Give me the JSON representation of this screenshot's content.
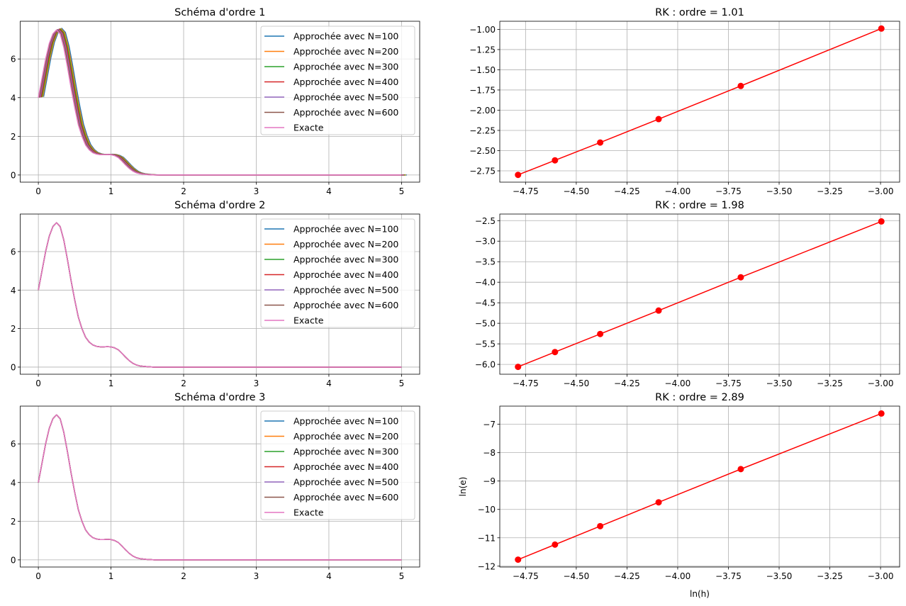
{
  "chart_data": [
    {
      "type": "line",
      "title": "Schéma d'ordre 1",
      "xlim": [
        -0.25,
        5.25
      ],
      "ylim": [
        -0.37,
        7.95
      ],
      "xticks": [
        "0",
        "1",
        "2",
        "3",
        "4",
        "5"
      ],
      "xtick_values": [
        0,
        1,
        2,
        3,
        4,
        5
      ],
      "yticks": [
        "0",
        "2",
        "4",
        "6"
      ],
      "ytick_values": [
        0,
        2,
        4,
        6
      ],
      "grid": true,
      "legend": "top-right",
      "x": [
        0,
        0.05,
        0.1,
        0.15,
        0.2,
        0.25,
        0.3,
        0.35,
        0.4,
        0.45,
        0.5,
        0.55,
        0.6,
        0.65,
        0.7,
        0.75,
        0.8,
        0.85,
        0.9,
        0.95,
        1.0,
        1.05,
        1.1,
        1.15,
        1.2,
        1.25,
        1.3,
        1.35,
        1.4,
        1.5,
        1.6,
        2,
        3,
        4,
        5
      ],
      "y": [
        4,
        5.0,
        6.0,
        6.8,
        7.3,
        7.5,
        7.3,
        6.6,
        5.6,
        4.5,
        3.5,
        2.6,
        2.0,
        1.55,
        1.3,
        1.15,
        1.08,
        1.05,
        1.05,
        1.06,
        1.05,
        1.0,
        0.9,
        0.72,
        0.52,
        0.34,
        0.2,
        0.11,
        0.06,
        0.02,
        0.0,
        0,
        0,
        0,
        0
      ],
      "series": [
        {
          "name": "Approchée avec N=100",
          "color": "#1f77b4"
        },
        {
          "name": "Approchée avec N=200",
          "color": "#ff7f0e"
        },
        {
          "name": "Approchée avec N=300",
          "color": "#2ca02c"
        },
        {
          "name": "Approchée avec N=400",
          "color": "#d62728"
        },
        {
          "name": "Approchée avec N=500",
          "color": "#9467bd"
        },
        {
          "name": "Approchée avec N=600",
          "color": "#8c564b"
        },
        {
          "name": "Exacte",
          "color": "#e377c2"
        }
      ]
    },
    {
      "type": "line",
      "title": "RK : ordre = 1.01",
      "xlim": [
        -4.877,
        -2.906
      ],
      "ylim": [
        -2.89,
        -0.9
      ],
      "xticks": [
        "−4.75",
        "−4.50",
        "−4.25",
        "−4.00",
        "−3.75",
        "−3.50",
        "−3.25",
        "−3.00"
      ],
      "xtick_values": [
        -4.75,
        -4.5,
        -4.25,
        -4,
        -3.75,
        -3.5,
        -3.25,
        -3
      ],
      "yticks": [
        "−1.00",
        "−1.25",
        "−1.50",
        "−1.75",
        "−2.00",
        "−2.25",
        "−2.50",
        "−2.75"
      ],
      "ytick_values": [
        -1,
        -1.25,
        -1.5,
        -1.75,
        -2,
        -2.25,
        -2.5,
        -2.75
      ],
      "grid": true,
      "color": "#ff0000",
      "x": [
        -4.787,
        -4.605,
        -4.382,
        -4.094,
        -3.689,
        -2.996
      ],
      "y": [
        -2.8,
        -2.62,
        -2.4,
        -2.11,
        -1.7,
        -0.99
      ]
    },
    {
      "type": "line",
      "title": "Schéma d'ordre 2",
      "xlim": [
        -0.25,
        5.25
      ],
      "ylim": [
        -0.37,
        7.95
      ],
      "xticks": [
        "0",
        "1",
        "2",
        "3",
        "4",
        "5"
      ],
      "xtick_values": [
        0,
        1,
        2,
        3,
        4,
        5
      ],
      "yticks": [
        "0",
        "2",
        "4",
        "6"
      ],
      "ytick_values": [
        0,
        2,
        4,
        6
      ],
      "grid": true,
      "legend": "top-right",
      "series": [
        {
          "name": "Approchée avec N=100",
          "color": "#1f77b4"
        },
        {
          "name": "Approchée avec N=200",
          "color": "#ff7f0e"
        },
        {
          "name": "Approchée avec N=300",
          "color": "#2ca02c"
        },
        {
          "name": "Approchée avec N=400",
          "color": "#d62728"
        },
        {
          "name": "Approchée avec N=500",
          "color": "#9467bd"
        },
        {
          "name": "Approchée avec N=600",
          "color": "#8c564b"
        },
        {
          "name": "Exacte",
          "color": "#e377c2"
        }
      ]
    },
    {
      "type": "line",
      "title": "RK : ordre = 1.98",
      "xlim": [
        -4.877,
        -2.906
      ],
      "ylim": [
        -6.24,
        -2.34
      ],
      "xticks": [
        "−4.75",
        "−4.50",
        "−4.25",
        "−4.00",
        "−3.75",
        "−3.50",
        "−3.25",
        "−3.00"
      ],
      "xtick_values": [
        -4.75,
        -4.5,
        -4.25,
        -4,
        -3.75,
        -3.5,
        -3.25,
        -3
      ],
      "yticks": [
        "−2.5",
        "−3.0",
        "−3.5",
        "−4.0",
        "−4.5",
        "−5.0",
        "−5.5",
        "−6.0"
      ],
      "ytick_values": [
        -2.5,
        -3,
        -3.5,
        -4,
        -4.5,
        -5,
        -5.5,
        -6
      ],
      "grid": true,
      "color": "#ff0000",
      "x": [
        -4.787,
        -4.605,
        -4.382,
        -4.094,
        -3.689,
        -2.996
      ],
      "y": [
        -6.06,
        -5.7,
        -5.26,
        -4.69,
        -3.88,
        -2.52
      ]
    },
    {
      "type": "line",
      "title": "Schéma d'ordre 3",
      "xlim": [
        -0.25,
        5.25
      ],
      "ylim": [
        -0.37,
        7.95
      ],
      "xticks": [
        "0",
        "1",
        "2",
        "3",
        "4",
        "5"
      ],
      "xtick_values": [
        0,
        1,
        2,
        3,
        4,
        5
      ],
      "yticks": [
        "0",
        "2",
        "4",
        "6"
      ],
      "ytick_values": [
        0,
        2,
        4,
        6
      ],
      "grid": true,
      "legend": "top-right",
      "series": [
        {
          "name": "Approchée avec N=100",
          "color": "#1f77b4"
        },
        {
          "name": "Approchée avec N=200",
          "color": "#ff7f0e"
        },
        {
          "name": "Approchée avec N=300",
          "color": "#2ca02c"
        },
        {
          "name": "Approchée avec N=400",
          "color": "#d62728"
        },
        {
          "name": "Approchée avec N=500",
          "color": "#9467bd"
        },
        {
          "name": "Approchée avec N=600",
          "color": "#8c564b"
        },
        {
          "name": "Exacte",
          "color": "#e377c2"
        }
      ]
    },
    {
      "type": "line",
      "title": "RK : ordre = 2.89",
      "xlabel": "ln(h)",
      "ylabel": "ln(e)",
      "xlim": [
        -4.877,
        -2.906
      ],
      "ylim": [
        -12.03,
        -6.36
      ],
      "xticks": [
        "−4.75",
        "−4.50",
        "−4.25",
        "−4.00",
        "−3.75",
        "−3.50",
        "−3.25",
        "−3.00"
      ],
      "xtick_values": [
        -4.75,
        -4.5,
        -4.25,
        -4,
        -3.75,
        -3.5,
        -3.25,
        -3
      ],
      "yticks": [
        "−7",
        "−8",
        "−9",
        "−10",
        "−11",
        "−12"
      ],
      "ytick_values": [
        -7,
        -8,
        -9,
        -10,
        -11,
        -12
      ],
      "grid": true,
      "color": "#ff0000",
      "x": [
        -4.787,
        -4.605,
        -4.382,
        -4.094,
        -3.689,
        -2.996
      ],
      "y": [
        -11.77,
        -11.24,
        -10.59,
        -9.75,
        -8.58,
        -6.62
      ]
    }
  ]
}
